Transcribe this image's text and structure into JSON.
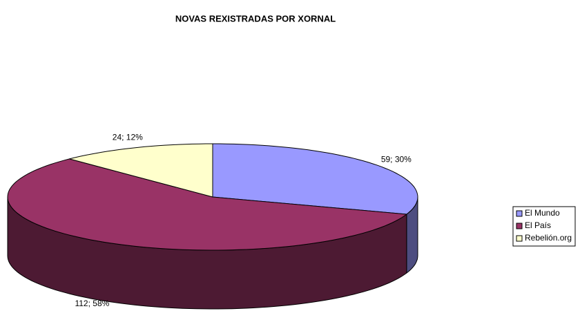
{
  "chart_data": {
    "type": "pie",
    "title": "NOVAS REXISTRADAS POR XORNAL",
    "categories": [
      "El Mundo",
      "El País",
      "Rebelión.org"
    ],
    "values": [
      59,
      112,
      24
    ],
    "value_labels": [
      "59; 30%",
      "112; 58%",
      "24; 12%"
    ],
    "colors": [
      "#9999ff",
      "#993366",
      "#ffffcc"
    ],
    "legend": "right"
  }
}
